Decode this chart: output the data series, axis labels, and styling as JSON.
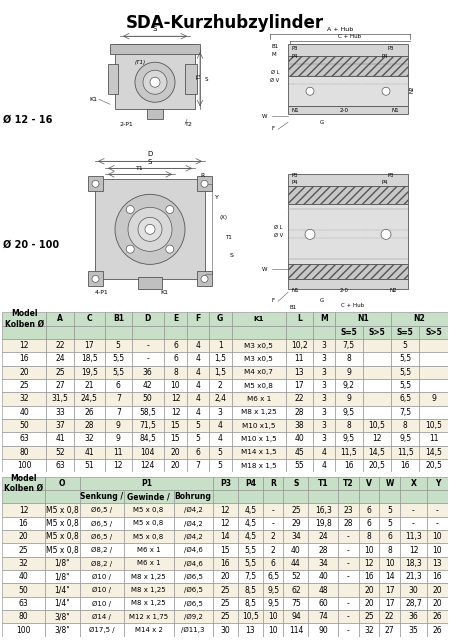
{
  "title": "SDA-Kurzhubzylinder",
  "table1_data": [
    [
      "12",
      "22",
      "17",
      "5",
      "-",
      "6",
      "4",
      "1",
      "M3 x0,5",
      "10,2",
      "3",
      "7,5",
      "",
      "5",
      ""
    ],
    [
      "16",
      "24",
      "18,5",
      "5,5",
      "-",
      "6",
      "4",
      "1,5",
      "M3 x0,5",
      "11",
      "3",
      "8",
      "",
      "5,5",
      ""
    ],
    [
      "20",
      "25",
      "19,5",
      "5,5",
      "36",
      "8",
      "4",
      "1,5",
      "M4 x0,7",
      "13",
      "3",
      "9",
      "",
      "5,5",
      ""
    ],
    [
      "25",
      "27",
      "21",
      "6",
      "42",
      "10",
      "4",
      "2",
      "M5 x0,8",
      "17",
      "3",
      "9,2",
      "",
      "5,5",
      ""
    ],
    [
      "32",
      "31,5",
      "24,5",
      "7",
      "50",
      "12",
      "4",
      "2,4",
      "M6 x 1",
      "22",
      "3",
      "9",
      "",
      "6,5",
      "9"
    ],
    [
      "40",
      "33",
      "26",
      "7",
      "58,5",
      "12",
      "4",
      "3",
      "M8 x 1,25",
      "28",
      "3",
      "9,5",
      "",
      "7,5",
      ""
    ],
    [
      "50",
      "37",
      "28",
      "9",
      "71,5",
      "15",
      "5",
      "4",
      "M10 x1,5",
      "38",
      "3",
      "8",
      "10,5",
      "8",
      "10,5"
    ],
    [
      "63",
      "41",
      "32",
      "9",
      "84,5",
      "15",
      "5",
      "4",
      "M10 x 1,5",
      "40",
      "3",
      "9,5",
      "12",
      "9,5",
      "11"
    ],
    [
      "80",
      "52",
      "41",
      "11",
      "104",
      "20",
      "6",
      "5",
      "M14 x 1,5",
      "45",
      "4",
      "11,5",
      "14,5",
      "11,5",
      "14,5"
    ],
    [
      "100",
      "63",
      "51",
      "12",
      "124",
      "20",
      "7",
      "5",
      "M18 x 1,5",
      "55",
      "4",
      "16",
      "20,5",
      "16",
      "20,5"
    ]
  ],
  "table2_data": [
    [
      "12",
      "M5 x 0,8",
      "Ø6,5 /",
      "M5 x 0,8",
      "/Ø4,2",
      "12",
      "4,5",
      "-",
      "25",
      "16,3",
      "23",
      "6",
      "5",
      "-",
      "-"
    ],
    [
      "16",
      "M5 x 0,8",
      "Ø6,5 /",
      "M5 x 0,8",
      "/Ø4,2",
      "12",
      "4,5",
      "-",
      "29",
      "19,8",
      "28",
      "6",
      "5",
      "-",
      "-"
    ],
    [
      "20",
      "M5 x 0,8",
      "Ø6,5 /",
      "M5 x 0,8",
      "/Ø4,2",
      "14",
      "4,5",
      "2",
      "34",
      "24",
      "-",
      "8",
      "6",
      "11,3",
      "10"
    ],
    [
      "25",
      "M5 x 0,8",
      "Ø8,2 /",
      "M6 x 1",
      "/Ø4,6",
      "15",
      "5,5",
      "2",
      "40",
      "28",
      "-",
      "10",
      "8",
      "12",
      "10"
    ],
    [
      "32",
      "1/8\"",
      "Ø8,2 /",
      "M6 x 1",
      "/Ø4,6",
      "16",
      "5,5",
      "6",
      "44",
      "34",
      "-",
      "12",
      "10",
      "18,3",
      "13"
    ],
    [
      "40",
      "1/8\"",
      "Ø10 /",
      "M8 x 1,25",
      "/Ø6,5",
      "20",
      "7,5",
      "6,5",
      "52",
      "40",
      "-",
      "16",
      "14",
      "21,3",
      "16"
    ],
    [
      "50",
      "1/4\"",
      "Ø10 /",
      "M8 x 1,25",
      "/Ø6,5",
      "25",
      "8,5",
      "9,5",
      "62",
      "48",
      "",
      "20",
      "17",
      "30",
      "20"
    ],
    [
      "63",
      "1/4\"",
      "Ø10 /",
      "M8 x 1,25",
      "/Ø6,5",
      "25",
      "8,5",
      "9,5",
      "75",
      "60",
      "-",
      "20",
      "17",
      "28,7",
      "20"
    ],
    [
      "80",
      "3/8\"",
      "Ø14 /",
      "M12 x 1,75",
      "/Ø9,2",
      "25",
      "10,5",
      "10",
      "94",
      "74",
      "-",
      "25",
      "22",
      "36",
      "26"
    ],
    [
      "100",
      "3/8\"",
      "Ø17,5 /",
      "M14 x 2",
      "/Ø11,3",
      "30",
      "13",
      "10",
      "114",
      "90",
      "-",
      "32",
      "27",
      "35",
      "26"
    ]
  ],
  "bg_color_header": "#c8dfc8",
  "bg_color_row_even": "#f5f0e0",
  "bg_color_row_odd": "#ffffff",
  "border_color": "#888888"
}
